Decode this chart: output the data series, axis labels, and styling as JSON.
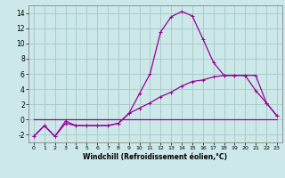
{
  "xlabel": "Windchill (Refroidissement éolien,°C)",
  "bg_color": "#cce8e8",
  "grid_color": "#aacccc",
  "line_color": "#990099",
  "x_ticks": [
    0,
    1,
    2,
    3,
    4,
    5,
    6,
    7,
    8,
    9,
    10,
    11,
    12,
    13,
    14,
    15,
    16,
    17,
    18,
    19,
    20,
    21,
    22,
    23
  ],
  "ylim": [
    -3,
    15
  ],
  "xlim": [
    -0.5,
    23.5
  ],
  "yticks": [
    -2,
    0,
    2,
    4,
    6,
    8,
    10,
    12,
    14
  ],
  "curve1_x": [
    0,
    1,
    2,
    3,
    4,
    5,
    6,
    7,
    8,
    9,
    10,
    11,
    12,
    13,
    14,
    15,
    16,
    17,
    18,
    19,
    20,
    21,
    22,
    23
  ],
  "curve1_y": [
    -2.2,
    -0.8,
    -2.2,
    -0.2,
    -0.8,
    -0.8,
    -0.8,
    -0.8,
    -0.5,
    0.8,
    3.4,
    6.0,
    11.5,
    13.5,
    14.2,
    13.6,
    10.6,
    7.5,
    5.8,
    5.8,
    5.8,
    3.8,
    2.2,
    0.5
  ],
  "curve2_x": [
    0,
    1,
    2,
    3,
    4,
    5,
    6,
    7,
    8,
    9,
    10,
    11,
    12,
    13,
    14,
    15,
    16,
    17,
    18,
    19,
    20,
    21,
    22,
    23
  ],
  "curve2_y": [
    -2.2,
    -0.8,
    -2.2,
    -0.5,
    -0.8,
    -0.8,
    -0.8,
    -0.8,
    -0.5,
    0.8,
    1.5,
    2.2,
    3.0,
    3.6,
    4.4,
    5.0,
    5.2,
    5.6,
    5.8,
    5.8,
    5.8,
    5.8,
    2.2,
    0.5
  ],
  "curve3_x": [
    0,
    23
  ],
  "curve3_y": [
    0.0,
    0.0
  ],
  "markersize": 3,
  "linewidth": 0.9,
  "tick_fontsize_x": 4.5,
  "tick_fontsize_y": 5.5,
  "xlabel_fontsize": 5.5
}
